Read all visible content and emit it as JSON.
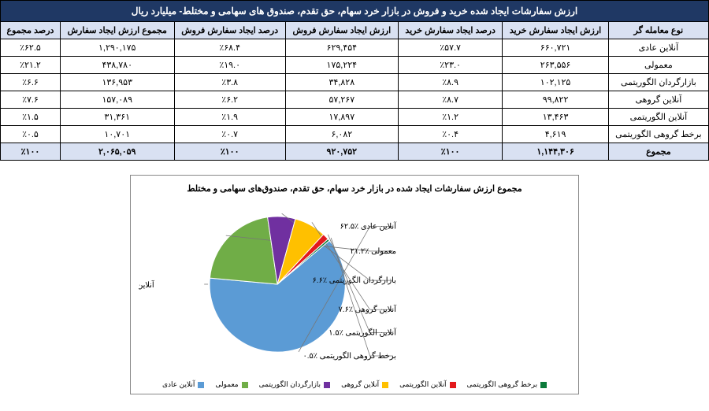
{
  "table": {
    "title": "ارزش سفارشات ایجاد شده خرید و فروش در بازار خرد سهام، حق تقدم، صندوق های سهامی و مختلط- میلیارد ریال",
    "columns": [
      "نوع معامله گر",
      "ارزش ایجاد سفارش خرید",
      "درصد ایجاد سفارش خرید",
      "ارزش ایجاد سفارش فروش",
      "درصد ایجاد سفارش فروش",
      "مجموع ارزش ایجاد سفارش",
      "درصد مجموع"
    ],
    "rows": [
      [
        "آنلاین عادی",
        "۶۶۰,۷۲۱",
        "٪۵۷.۷",
        "۶۲۹,۴۵۴",
        "٪۶۸.۴",
        "۱,۲۹۰,۱۷۵",
        "٪۶۲.۵"
      ],
      [
        "معمولی",
        "۲۶۳,۵۵۶",
        "٪۲۳.۰",
        "۱۷۵,۲۲۴",
        "٪۱۹.۰",
        "۴۳۸,۷۸۰",
        "٪۲۱.۲"
      ],
      [
        "بازارگردان الگوریتمی",
        "۱۰۲,۱۲۵",
        "٪۸.۹",
        "۳۴,۸۲۸",
        "٪۳.۸",
        "۱۳۶,۹۵۳",
        "٪۶.۶"
      ],
      [
        "آنلاین گروهی",
        "۹۹,۸۲۲",
        "٪۸.۷",
        "۵۷,۲۶۷",
        "٪۶.۲",
        "۱۵۷,۰۸۹",
        "٪۷.۶"
      ],
      [
        "آنلاین الگوریتمی",
        "۱۳,۴۶۳",
        "٪۱.۲",
        "۱۷,۸۹۷",
        "٪۱.۹",
        "۳۱,۳۶۱",
        "٪۱.۵"
      ],
      [
        "برخط گروهی الگوریتمی",
        "۴,۶۱۹",
        "٪۰.۴",
        "۶,۰۸۲",
        "٪۰.۷",
        "۱۰,۷۰۱",
        "٪۰.۵"
      ]
    ],
    "sum_row": [
      "مجموع",
      "۱,۱۴۴,۳۰۶",
      "٪۱۰۰",
      "۹۲۰,۷۵۲",
      "٪۱۰۰",
      "۲,۰۶۵,۰۵۹",
      "٪۱۰۰"
    ],
    "header_bg": "#1f3864",
    "header_fg": "#ffffff",
    "subhead_bg": "#d9e1f2",
    "border_color": "#000000"
  },
  "chart": {
    "title": "مجموع ارزش سفارشات ایجاد شده در بازار خرد سهام، حق تقدم، صندوق‌های سهامی و مختلط",
    "type": "pie",
    "slices": [
      {
        "label": "آنلاین عادی ٪۶۲.۵",
        "value": 62.5,
        "color": "#5b9bd5"
      },
      {
        "label": "معمولی ٪۲۱.۲",
        "value": 21.2,
        "color": "#70ad47"
      },
      {
        "label": "بازارگردان الگوریتمی ٪۶.۶",
        "value": 6.6,
        "color": "#7030a0"
      },
      {
        "label": "آنلاین گروهی ٪۷.۶",
        "value": 7.6,
        "color": "#ffc000"
      },
      {
        "label": "آنلاین الگوریتمی ٪۱.۵",
        "value": 1.5,
        "color": "#e3191c"
      },
      {
        "label": "برخط گروهی الگوریتمی ٪۰.۵",
        "value": 0.5,
        "color": "#0b7a3a"
      }
    ],
    "legend": [
      {
        "label": "برخط گروهی الگوریتمی",
        "color": "#0b7a3a"
      },
      {
        "label": "آنلاین الگوریتمی",
        "color": "#e3191c"
      },
      {
        "label": "آنلاین گروهی",
        "color": "#ffc000"
      },
      {
        "label": "بازارگردان الگوریتمی",
        "color": "#7030a0"
      },
      {
        "label": "معمولی",
        "color": "#70ad47"
      },
      {
        "label": "آنلاین عادی",
        "color": "#5b9bd5"
      }
    ],
    "start_angle_deg": -40,
    "background_color": "#ffffff",
    "border_color": "#888888",
    "title_fontsize": 11,
    "label_fontsize": 10
  }
}
